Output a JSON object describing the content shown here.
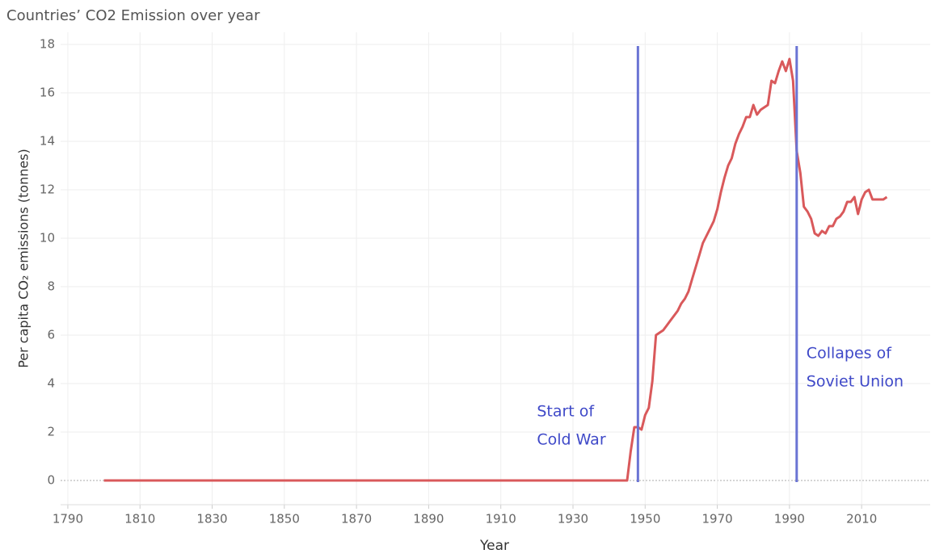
{
  "chart_data": {
    "type": "line",
    "title": "Countries’ CO2 Emission over year",
    "x_label": "Year",
    "y_label": "Per capita CO₂ emissions (tonnes)",
    "color": "#d9595b",
    "x": [
      1800,
      1810,
      1820,
      1830,
      1840,
      1850,
      1860,
      1870,
      1880,
      1890,
      1900,
      1910,
      1920,
      1930,
      1940,
      1945,
      1946,
      1947,
      1948,
      1949,
      1950,
      1951,
      1952,
      1953,
      1954,
      1955,
      1956,
      1957,
      1958,
      1959,
      1960,
      1961,
      1962,
      1963,
      1964,
      1965,
      1966,
      1967,
      1968,
      1969,
      1970,
      1971,
      1972,
      1973,
      1974,
      1975,
      1976,
      1977,
      1978,
      1979,
      1980,
      1981,
      1982,
      1983,
      1984,
      1985,
      1986,
      1987,
      1988,
      1989,
      1990,
      1991,
      1992,
      1993,
      1994,
      1995,
      1996,
      1997,
      1998,
      1999,
      2000,
      2001,
      2002,
      2003,
      2004,
      2005,
      2006,
      2007,
      2008,
      2009,
      2010,
      2011,
      2012,
      2013,
      2014,
      2015,
      2016,
      2017
    ],
    "values": [
      0,
      0,
      0,
      0,
      0,
      0,
      0,
      0,
      0,
      0,
      0,
      0,
      0,
      0,
      0,
      0,
      1.2,
      2.2,
      2.2,
      2.1,
      2.7,
      3.0,
      4.1,
      6.0,
      6.1,
      6.2,
      6.4,
      6.6,
      6.8,
      7.0,
      7.3,
      7.5,
      7.8,
      8.3,
      8.8,
      9.3,
      9.8,
      10.1,
      10.4,
      10.7,
      11.2,
      11.9,
      12.5,
      13.0,
      13.3,
      13.9,
      14.3,
      14.6,
      15.0,
      15.0,
      15.5,
      15.1,
      15.3,
      15.4,
      15.5,
      16.5,
      16.4,
      16.9,
      17.3,
      16.9,
      17.4,
      16.5,
      13.6,
      12.7,
      11.3,
      11.1,
      10.8,
      10.2,
      10.1,
      10.3,
      10.2,
      10.5,
      10.5,
      10.8,
      10.9,
      11.1,
      11.5,
      11.5,
      11.7,
      11.0,
      11.6,
      11.9,
      12.0,
      11.6,
      11.6,
      11.6,
      11.6,
      11.7
    ],
    "xlim": [
      1788,
      2029
    ],
    "ylim": [
      -1,
      18.5
    ],
    "xticks": [
      1790,
      1810,
      1830,
      1850,
      1870,
      1890,
      1910,
      1930,
      1950,
      1970,
      1990,
      2010
    ],
    "yticks": [
      0,
      2,
      4,
      6,
      8,
      10,
      12,
      14,
      16,
      18
    ],
    "grid": true,
    "reference_lines": [
      {
        "x": 1948,
        "color": "#6a74d4",
        "label": [
          "Start of",
          "Cold War"
        ]
      },
      {
        "x": 1992,
        "color": "#6a74d4",
        "label": [
          "Collapes of",
          "Soviet Union"
        ]
      }
    ]
  }
}
